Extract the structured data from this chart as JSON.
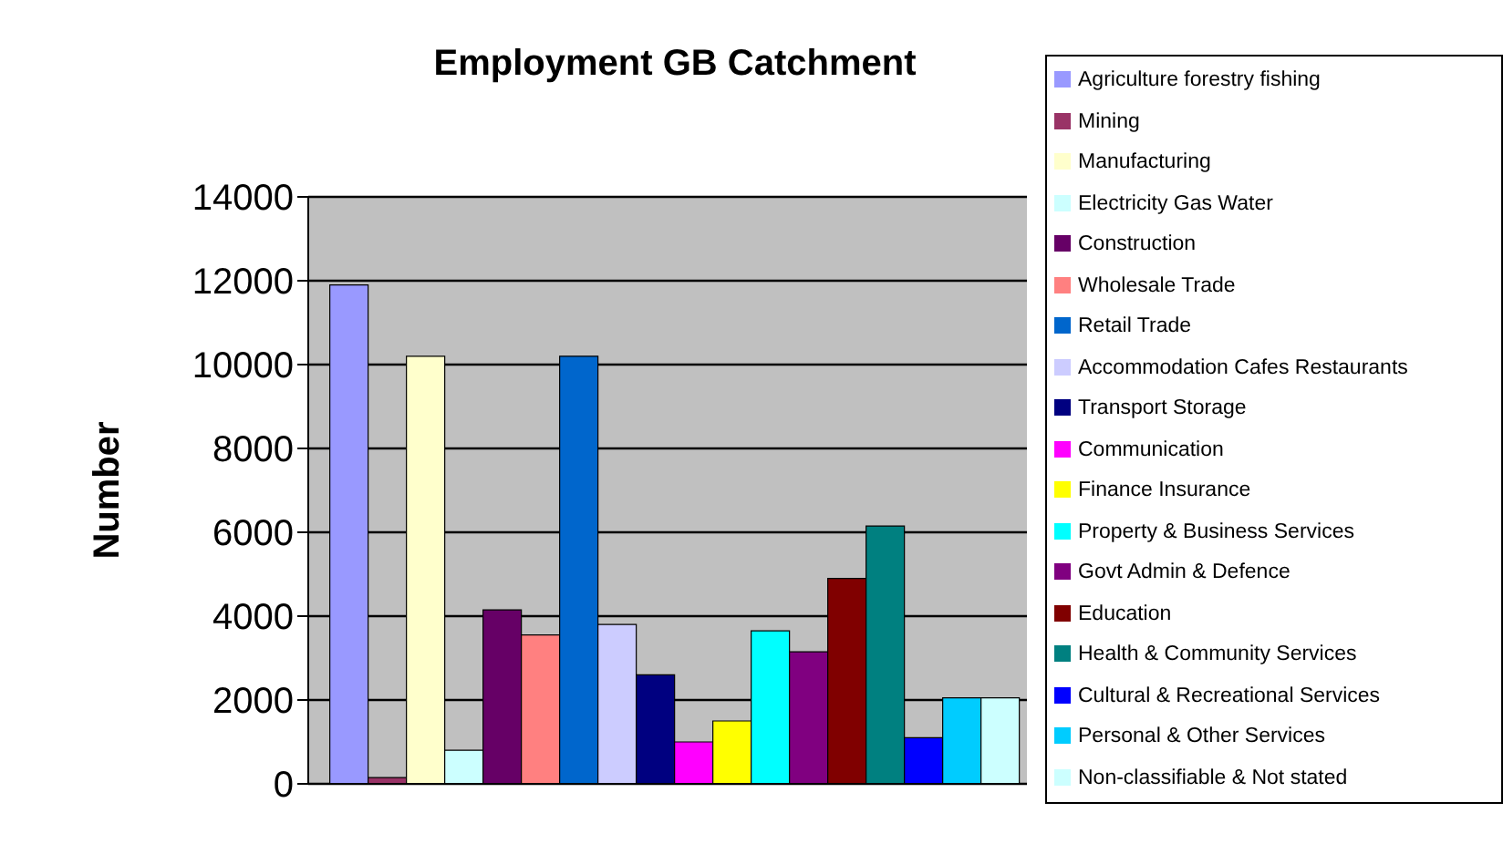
{
  "chart_data": {
    "type": "bar",
    "title": "Employment GB Catchment",
    "ylabel": "Number",
    "categories": [
      null
    ],
    "series": [
      {
        "name": "Agriculture forestry fishing",
        "color": "#9999ff",
        "values": [
          11900
        ]
      },
      {
        "name": "Mining",
        "color": "#993366",
        "values": [
          150
        ]
      },
      {
        "name": "Manufacturing",
        "color": "#ffffcc",
        "values": [
          10200
        ]
      },
      {
        "name": "Electricity Gas Water",
        "color": "#ccffff",
        "values": [
          800
        ]
      },
      {
        "name": "Construction",
        "color": "#660066",
        "values": [
          4150
        ]
      },
      {
        "name": "Wholesale Trade",
        "color": "#ff8080",
        "values": [
          3550
        ]
      },
      {
        "name": "Retail Trade",
        "color": "#0066cc",
        "values": [
          10200
        ]
      },
      {
        "name": "Accommodation Cafes Restaurants",
        "color": "#ccccff",
        "values": [
          3800
        ]
      },
      {
        "name": "Transport Storage",
        "color": "#000080",
        "values": [
          2600
        ]
      },
      {
        "name": "Communication",
        "color": "#ff00ff",
        "values": [
          1000
        ]
      },
      {
        "name": "Finance Insurance",
        "color": "#ffff00",
        "values": [
          1500
        ]
      },
      {
        "name": "Property & Business Services",
        "color": "#00ffff",
        "values": [
          3650
        ]
      },
      {
        "name": "Govt Admin & Defence",
        "color": "#800080",
        "values": [
          3150
        ]
      },
      {
        "name": "Education",
        "color": "#800000",
        "values": [
          4900
        ]
      },
      {
        "name": "Health & Community Services",
        "color": "#008080",
        "values": [
          6150
        ]
      },
      {
        "name": "Cultural & Recreational Services",
        "color": "#0000ff",
        "values": [
          1100
        ]
      },
      {
        "name": "Personal & Other Services",
        "color": "#00ccff",
        "values": [
          2050
        ]
      },
      {
        "name": "Non-classifiable & Not stated",
        "color": "#ccffff",
        "values": [
          2050
        ]
      }
    ],
    "ylim": [
      0,
      14000
    ],
    "yticks": [
      0,
      2000,
      4000,
      6000,
      8000,
      10000,
      12000,
      14000
    ],
    "grid": "y",
    "legend": "right"
  }
}
